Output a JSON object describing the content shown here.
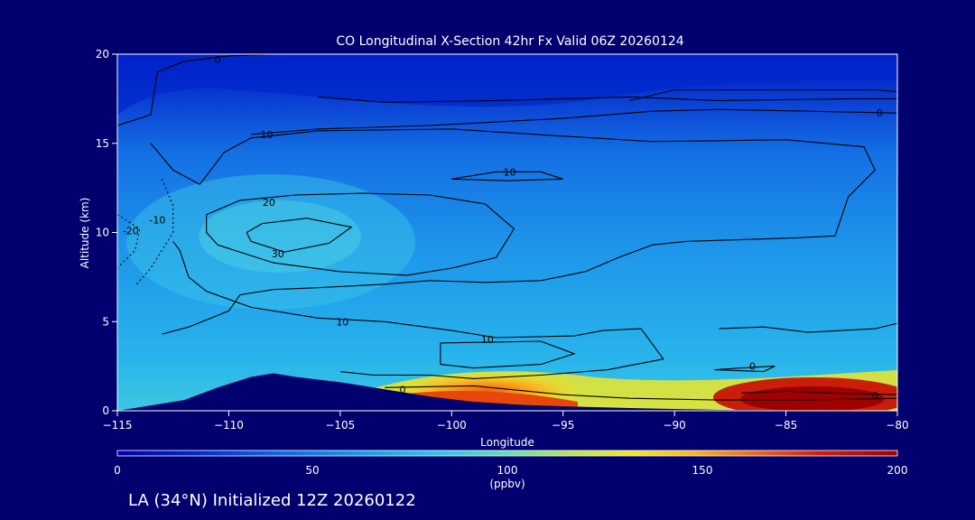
{
  "chart_data": {
    "type": "heatmap",
    "title": "CO Longitudinal X-Section 42hr  Fx Valid 06Z 20260124",
    "xlabel": "Longitude",
    "ylabel": "Altitude (km)",
    "xlim": [
      -115,
      -80
    ],
    "ylim": [
      0,
      20
    ],
    "x_ticks": [
      -115,
      -110,
      -105,
      -100,
      -95,
      -90,
      -85,
      -80
    ],
    "y_ticks": [
      0,
      5,
      10,
      15,
      20
    ],
    "colorbar": {
      "min": 0,
      "max": 200,
      "ticks": [
        0,
        50,
        100,
        150,
        200
      ],
      "units": "(ppbv)",
      "colors": [
        "#0000b4",
        "#0028d2",
        "#0a64e6",
        "#14a0f0",
        "#32c8e6",
        "#64dcb4",
        "#b4e650",
        "#f0e628",
        "#fab41e",
        "#f06414",
        "#d21e0a",
        "#a00000"
      ]
    },
    "terrain": [
      [
        -115,
        0.0
      ],
      [
        -113.5,
        0.3
      ],
      [
        -112,
        0.6
      ],
      [
        -110.5,
        1.3
      ],
      [
        -109,
        1.9
      ],
      [
        -108,
        2.1
      ],
      [
        -107,
        1.9
      ],
      [
        -105,
        1.6
      ],
      [
        -103,
        1.2
      ],
      [
        -101,
        0.8
      ],
      [
        -99,
        0.5
      ],
      [
        -97,
        0.35
      ],
      [
        -95,
        0.25
      ],
      [
        -92,
        0.15
      ],
      [
        -88,
        0.05
      ],
      [
        -80,
        0.0
      ]
    ],
    "contour_levels": [
      {
        "value": 0,
        "label": "0"
      },
      {
        "value": 10,
        "label": "10"
      },
      {
        "value": 20,
        "label": "20"
      },
      {
        "value": 30,
        "label": "30"
      },
      {
        "value": -10,
        "label": "-10"
      },
      {
        "value": -20,
        "label": "-20"
      }
    ],
    "contour_paths": [
      {
        "level": 0,
        "points": [
          [
            -115,
            16
          ],
          [
            -113.5,
            16.6
          ],
          [
            -113.2,
            19
          ],
          [
            -112,
            19.6
          ],
          [
            -110,
            19.9
          ],
          [
            -108,
            20
          ]
        ],
        "label_at": [
          -110.5,
          19.7
        ],
        "label": "0"
      },
      {
        "level": 0,
        "points": [
          [
            -106,
            17.6
          ],
          [
            -103,
            17.3
          ],
          [
            -98,
            17.4
          ],
          [
            -92,
            17.6
          ],
          [
            -88,
            17.4
          ],
          [
            -82,
            17.5
          ],
          [
            -80,
            17.5
          ]
        ]
      },
      {
        "level": 0,
        "points": [
          [
            -80,
            16.7
          ],
          [
            -84,
            16.8
          ],
          [
            -88,
            16.9
          ],
          [
            -91,
            16.8
          ],
          [
            -95,
            16.4
          ],
          [
            -101,
            16.0
          ],
          [
            -106,
            15.8
          ],
          [
            -109,
            15.5
          ]
        ]
      },
      {
        "level": 0,
        "points": [
          [
            -92,
            17.4
          ],
          [
            -90,
            18.0
          ],
          [
            -87,
            18.0
          ],
          [
            -81,
            18.0
          ],
          [
            -80,
            17.9
          ]
        ],
        "label_at": [
          -80.8,
          16.7
        ],
        "label": "0"
      },
      {
        "level": 10,
        "points": [
          [
            -113.5,
            15
          ],
          [
            -112.5,
            13.5
          ],
          [
            -111.3,
            12.7
          ],
          [
            -110.2,
            14.5
          ],
          [
            -109,
            15.3
          ],
          [
            -106,
            15.7
          ],
          [
            -100,
            15.8
          ],
          [
            -95,
            15.4
          ],
          [
            -91,
            15.1
          ],
          [
            -85,
            15.2
          ],
          [
            -81.5,
            14.8
          ],
          [
            -81,
            13.5
          ],
          [
            -82.2,
            12.0
          ],
          [
            -82.8,
            9.8
          ],
          [
            -84.5,
            9.7
          ],
          [
            -87,
            9.6
          ],
          [
            -89.5,
            9.5
          ],
          [
            -91,
            9.3
          ],
          [
            -92.5,
            8.6
          ],
          [
            -94,
            7.8
          ],
          [
            -96,
            7.3
          ],
          [
            -98.5,
            7.2
          ],
          [
            -101,
            7.3
          ],
          [
            -103,
            7.1
          ],
          [
            -106,
            6.9
          ],
          [
            -108,
            6.8
          ],
          [
            -109.5,
            6.5
          ],
          [
            -110,
            5.6
          ],
          [
            -111.8,
            4.7
          ],
          [
            -113,
            4.3
          ]
        ],
        "label_at": [
          -108.3,
          15.5
        ],
        "label": "10"
      },
      {
        "level": 10,
        "points": [
          [
            -100,
            13.0
          ],
          [
            -98,
            13.4
          ],
          [
            -96,
            13.4
          ],
          [
            -95,
            13.0
          ],
          [
            -97.5,
            12.9
          ],
          [
            -100,
            13.0
          ]
        ],
        "label_at": [
          -97.4,
          13.4
        ],
        "label": "10"
      },
      {
        "level": 10,
        "points": [
          [
            -112.5,
            9.5
          ],
          [
            -112.2,
            9.0
          ],
          [
            -111.8,
            7.5
          ],
          [
            -111,
            6.7
          ],
          [
            -109,
            5.8
          ],
          [
            -106,
            5.2
          ],
          [
            -103,
            5.0
          ],
          [
            -100,
            4.5
          ],
          [
            -98,
            4.1
          ],
          [
            -94.5,
            4.2
          ],
          [
            -93.2,
            4.5
          ],
          [
            -91.5,
            4.6
          ],
          [
            -90.5,
            2.9
          ],
          [
            -93,
            2.3
          ],
          [
            -96,
            2.0
          ],
          [
            -99,
            1.8
          ],
          [
            -101,
            2.0
          ],
          [
            -103.5,
            2.0
          ],
          [
            -105,
            2.2
          ]
        ],
        "label_at": [
          -104.9,
          5.0
        ],
        "label": "10"
      },
      {
        "level": 10,
        "points": [
          [
            -100.5,
            3.8
          ],
          [
            -96,
            3.9
          ],
          [
            -94.5,
            3.2
          ],
          [
            -96,
            2.6
          ],
          [
            -99,
            2.4
          ],
          [
            -100.5,
            2.6
          ],
          [
            -100.5,
            3.8
          ]
        ],
        "label_at": [
          -98.4,
          4.0
        ],
        "label": "10"
      },
      {
        "level": 20,
        "points": [
          [
            -111,
            11.0
          ],
          [
            -109.5,
            11.8
          ],
          [
            -107,
            12.1
          ],
          [
            -104,
            12.2
          ],
          [
            -101,
            12.1
          ],
          [
            -98.5,
            11.6
          ],
          [
            -97.2,
            10.2
          ],
          [
            -98,
            8.6
          ],
          [
            -100,
            8.0
          ],
          [
            -102,
            7.6
          ],
          [
            -105,
            7.8
          ],
          [
            -108,
            8.3
          ],
          [
            -110.5,
            9.3
          ],
          [
            -111,
            10.0
          ],
          [
            -111,
            11.0
          ]
        ],
        "label_at": [
          -108.2,
          11.7
        ],
        "label": "20"
      },
      {
        "level": 30,
        "points": [
          [
            -109.2,
            10.0
          ],
          [
            -108.5,
            10.5
          ],
          [
            -106.5,
            10.8
          ],
          [
            -104.5,
            10.3
          ],
          [
            -105.5,
            9.4
          ],
          [
            -107.5,
            8.9
          ],
          [
            -109,
            9.5
          ],
          [
            -109.2,
            10.0
          ]
        ],
        "label_at": [
          -107.8,
          8.8
        ],
        "label": "30"
      },
      {
        "level": 0,
        "points": [
          [
            -88.2,
            2.3
          ],
          [
            -87,
            2.4
          ],
          [
            -85.5,
            2.5
          ],
          [
            -86,
            2.2
          ],
          [
            -88.2,
            2.3
          ]
        ],
        "label_at": [
          -86.5,
          2.5
        ],
        "label": "0"
      },
      {
        "level": 0,
        "points": [
          [
            -88,
            4.6
          ],
          [
            -86,
            4.7
          ],
          [
            -84,
            4.4
          ],
          [
            -81,
            4.6
          ],
          [
            -80,
            4.9
          ]
        ]
      },
      {
        "level": 0,
        "points": [
          [
            -103,
            1.3
          ],
          [
            -99,
            1.4
          ],
          [
            -95,
            0.9
          ],
          [
            -92,
            0.7
          ],
          [
            -88,
            0.6
          ],
          [
            -84,
            0.6
          ],
          [
            -80,
            0.7
          ]
        ],
        "label_at": [
          -102.2,
          1.2
        ],
        "label": "0"
      },
      {
        "level": 0,
        "points": [
          [
            -80,
            0.9
          ],
          [
            -83,
            1.0
          ],
          [
            -85,
            1.1
          ],
          [
            -87,
            1.0
          ]
        ],
        "label_at": [
          -81,
          0.85
        ],
        "label": "0"
      },
      {
        "level": -10,
        "points": [
          [
            -113,
            13
          ],
          [
            -112.5,
            11.5
          ],
          [
            -112.5,
            10.0
          ],
          [
            -113.5,
            8.0
          ],
          [
            -114.2,
            7.0
          ]
        ],
        "label_at": [
          -113.2,
          10.7
        ],
        "label": "-10"
      },
      {
        "level": -20,
        "points": [
          [
            -115,
            11.0
          ],
          [
            -114,
            10.2
          ],
          [
            -114.2,
            9.0
          ],
          [
            -115,
            8.0
          ]
        ],
        "label_at": [
          -114.4,
          10.1
        ],
        "label": "-20"
      }
    ]
  },
  "footer": {
    "location_text": "LA (34°N) Initialized 12Z 20260122"
  }
}
